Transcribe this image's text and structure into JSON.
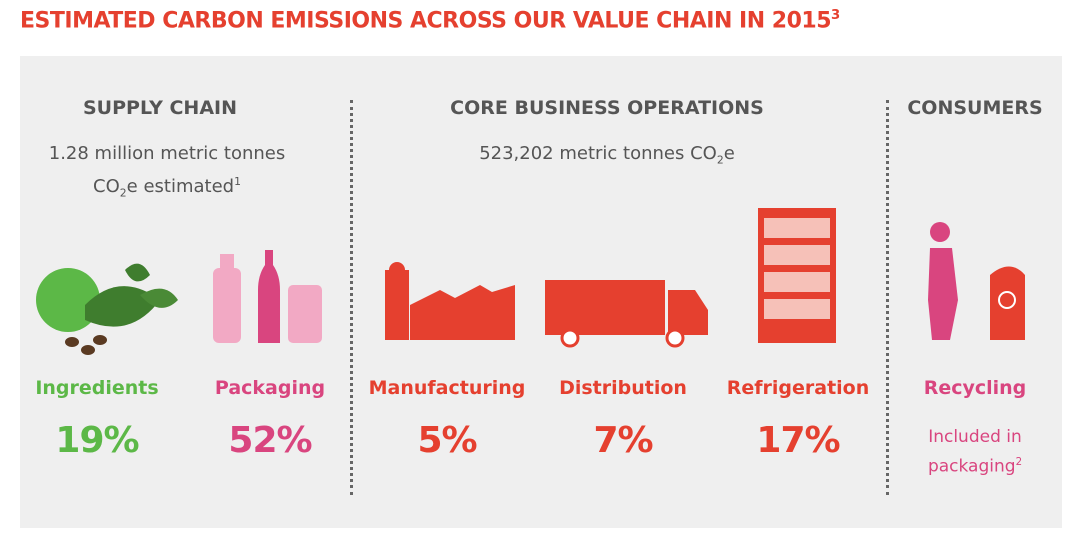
{
  "title": [
    {
      "text": "ESTIMATED CARBON EMISSIONS ACROSS OUR VALUE CHAIN IN 2015"
    },
    {
      "text": "3",
      "style": "sup"
    }
  ],
  "sections": [
    {
      "heading": "SUPPLY CHAIN",
      "note": [
        [
          {
            "text": "1.28 million metric tonnes"
          }
        ],
        [
          {
            "text": "CO"
          },
          {
            "text": "2",
            "style": "sub"
          },
          {
            "text": "e estimated"
          },
          {
            "text": "1",
            "style": "sup"
          }
        ]
      ],
      "items": [
        {
          "label": "Ingredients",
          "value": [
            [
              {
                "text": "19%"
              }
            ]
          ],
          "color": "#5cb847"
        },
        {
          "label": "Packaging",
          "value": [
            [
              {
                "text": "52%"
              }
            ]
          ],
          "color": "#d9457f"
        }
      ]
    },
    {
      "heading": "CORE BUSINESS OPERATIONS",
      "note": [
        [
          {
            "text": "523,202 metric tonnes CO"
          },
          {
            "text": "2",
            "style": "sub"
          },
          {
            "text": "e"
          }
        ]
      ],
      "items": [
        {
          "label": "Manufacturing",
          "value": [
            [
              {
                "text": "5%"
              }
            ]
          ],
          "color": "#e5402f"
        },
        {
          "label": "Distribution",
          "value": [
            [
              {
                "text": "7%"
              }
            ]
          ],
          "color": "#e5402f"
        },
        {
          "label": "Refrigeration",
          "value": [
            [
              {
                "text": "17%"
              }
            ]
          ],
          "color": "#e5402f"
        }
      ]
    },
    {
      "heading": "CONSUMERS",
      "note": [],
      "items": [
        {
          "label": "Recycling",
          "value": [
            [
              {
                "text": "Included in"
              }
            ],
            [
              {
                "text": "packaging"
              },
              {
                "text": "2",
                "style": "sup"
              }
            ]
          ],
          "color": "#d9457f"
        }
      ]
    }
  ]
}
